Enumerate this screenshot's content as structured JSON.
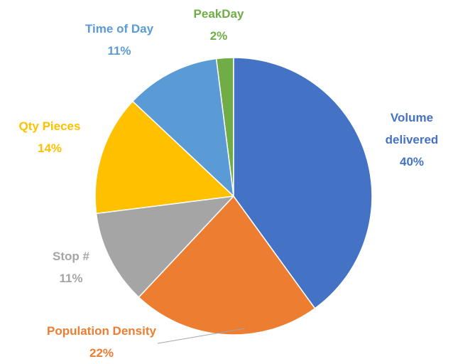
{
  "chart_data": {
    "type": "pie",
    "categories": [
      "Volume delivered",
      "Population Density",
      "Stop #",
      "Qty Pieces",
      "Time of Day",
      "PeakDay"
    ],
    "values": [
      40,
      22,
      11,
      14,
      11,
      2
    ],
    "value_labels": [
      "40%",
      "22%",
      "11%",
      "14%",
      "11%",
      "2%"
    ],
    "colors": [
      "#4472c4",
      "#ed7d31",
      "#a5a5a5",
      "#ffc000",
      "#5b9bd5",
      "#70ad47"
    ]
  }
}
